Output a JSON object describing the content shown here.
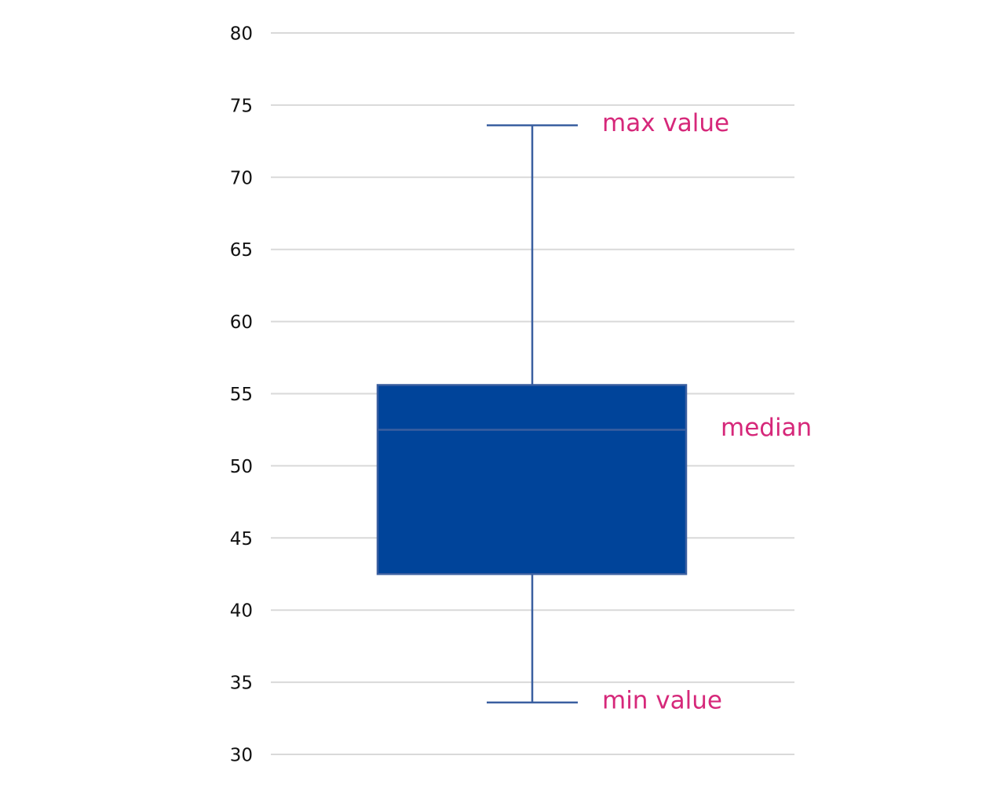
{
  "chart_data": {
    "type": "box",
    "box": {
      "min": 33.6,
      "q1": 42.5,
      "median": 52.5,
      "q3": 55.6,
      "max": 73.6
    },
    "color": "#00449a",
    "line_color": "#3a5fa0",
    "annotation_color": "#d6287a",
    "annotations": [
      "max value",
      "median",
      "min value"
    ],
    "ylim": [
      30,
      80
    ],
    "yticks": [
      30,
      35,
      40,
      45,
      50,
      55,
      60,
      65,
      70,
      75,
      80
    ],
    "grid": true
  }
}
